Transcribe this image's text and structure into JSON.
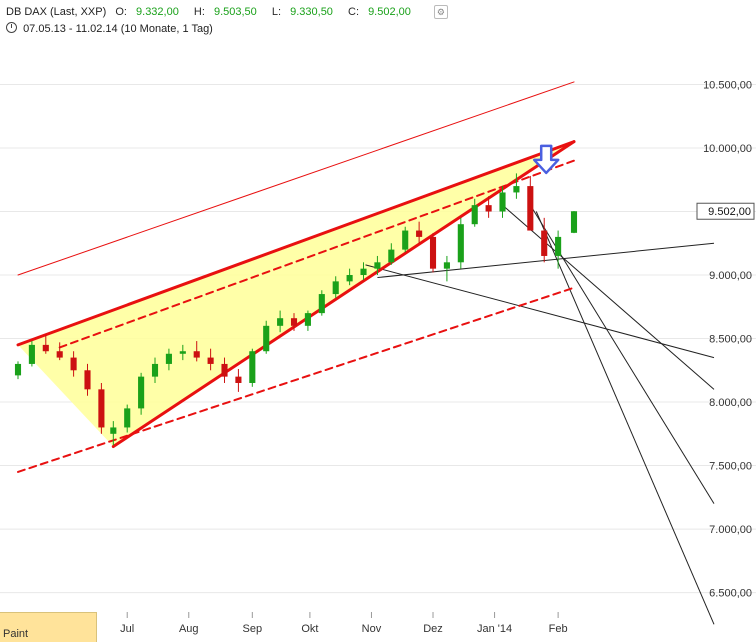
{
  "header": {
    "instrument": "DB DAX (Last, XXP)",
    "open_label": "O:",
    "open_value": "9.332,00",
    "high_label": "H:",
    "high_value": "9.503,50",
    "low_label": "L:",
    "low_value": "9.330,50",
    "close_label": "C:",
    "close_value": "9.502,00",
    "range": "07.05.13 - 11.02.14 (10 Monate, 1 Tag)",
    "settings_icon": "settings-icon",
    "clock_icon": "clock-icon"
  },
  "paint_button": {
    "label": "Paint"
  },
  "colors": {
    "up": "#1aa11a",
    "down": "#cc1111",
    "wedge_fill": "#ffff99",
    "trend_red": "#e81010",
    "arrow": "#4a5fe0",
    "grid": "#e8e8e8"
  },
  "chart_data": {
    "type": "candlestick",
    "title": "",
    "x_ticks": [
      "Jul",
      "Aug",
      "Sep",
      "Okt",
      "Nov",
      "Dez",
      "Jan '14",
      "Feb"
    ],
    "y_ticks": [
      "6.500,00",
      "7.000,00",
      "7.500,00",
      "8.000,00",
      "8.500,00",
      "9.000,00",
      "9.500,00",
      "10.000,00",
      "10.500,00"
    ],
    "y_tick_values": [
      6500,
      7000,
      7500,
      8000,
      8500,
      9000,
      9500,
      10000,
      10500
    ],
    "y_range": [
      6300,
      10850
    ],
    "last_price_label": "9.502,00",
    "last_price": 9502,
    "x_tick_dates": [
      "2013-07-01",
      "2013-08-01",
      "2013-09-02",
      "2013-10-01",
      "2013-11-01",
      "2013-12-02",
      "2014-01-02",
      "2014-02-03"
    ],
    "x_range": [
      "2013-05-07",
      "2014-02-11"
    ],
    "series": {
      "dates": [
        "2013-05-07",
        "2013-05-14",
        "2013-05-21",
        "2013-05-28",
        "2013-06-04",
        "2013-06-11",
        "2013-06-18",
        "2013-06-24",
        "2013-07-01",
        "2013-07-08",
        "2013-07-15",
        "2013-07-22",
        "2013-07-29",
        "2013-08-05",
        "2013-08-12",
        "2013-08-19",
        "2013-08-26",
        "2013-09-02",
        "2013-09-09",
        "2013-09-16",
        "2013-09-23",
        "2013-09-30",
        "2013-10-07",
        "2013-10-14",
        "2013-10-21",
        "2013-10-28",
        "2013-11-04",
        "2013-11-11",
        "2013-11-18",
        "2013-11-25",
        "2013-12-02",
        "2013-12-09",
        "2013-12-16",
        "2013-12-23",
        "2013-12-30",
        "2014-01-06",
        "2014-01-13",
        "2014-01-20",
        "2014-01-27",
        "2014-02-03",
        "2014-02-11"
      ],
      "open": [
        8210,
        8300,
        8450,
        8400,
        8350,
        8250,
        8100,
        7750,
        7800,
        7950,
        8200,
        8300,
        8380,
        8400,
        8350,
        8300,
        8200,
        8150,
        8400,
        8600,
        8660,
        8600,
        8700,
        8850,
        8950,
        9000,
        9050,
        9100,
        9200,
        9350,
        9300,
        9050,
        9100,
        9400,
        9550,
        9500,
        9650,
        9700,
        9350,
        9150,
        9332
      ],
      "high": [
        8320,
        8480,
        8530,
        8470,
        8400,
        8300,
        8150,
        7850,
        7980,
        8230,
        8350,
        8420,
        8450,
        8480,
        8420,
        8350,
        8260,
        8420,
        8640,
        8720,
        8700,
        8720,
        8880,
        8990,
        9050,
        9100,
        9150,
        9250,
        9380,
        9420,
        9330,
        9150,
        9450,
        9600,
        9620,
        9700,
        9800,
        9780,
        9450,
        9350,
        9504
      ],
      "low": [
        8180,
        8280,
        8380,
        8330,
        8200,
        8050,
        7750,
        7660,
        7760,
        7900,
        8150,
        8250,
        8330,
        8320,
        8250,
        8150,
        8080,
        8120,
        8380,
        8550,
        8560,
        8560,
        8680,
        8820,
        8920,
        8960,
        9000,
        9080,
        9180,
        9250,
        9020,
        8950,
        9050,
        9380,
        9450,
        9450,
        9600,
        9350,
        9100,
        9050,
        9330
      ],
      "close": [
        8300,
        8450,
        8400,
        8350,
        8250,
        8100,
        7800,
        7800,
        7950,
        8200,
        8300,
        8380,
        8400,
        8350,
        8300,
        8200,
        8150,
        8400,
        8600,
        8660,
        8600,
        8700,
        8850,
        8950,
        9000,
        9050,
        9100,
        9200,
        9350,
        9300,
        9050,
        9100,
        9400,
        9550,
        9500,
        9650,
        9700,
        9350,
        9150,
        9300,
        9502
      ]
    },
    "annotations": {
      "wedge": {
        "points": [
          [
            "2013-05-07",
            8450
          ],
          [
            "2014-02-11",
            10050
          ],
          [
            "2013-06-24",
            7650
          ]
        ]
      },
      "upper_trendline_red_solid": {
        "from": [
          "2013-05-07",
          8450
        ],
        "to": [
          "2014-02-11",
          10050
        ]
      },
      "lower_trendline_red_solid": {
        "from": [
          "2013-06-24",
          7650
        ],
        "to": [
          "2014-02-11",
          10050
        ]
      },
      "upper_trendline_red_dashed": {
        "from": [
          "2013-05-28",
          8430
        ],
        "to": [
          "2014-02-11",
          9900
        ]
      },
      "lower_trendline_red_dashed": {
        "from": [
          "2013-05-07",
          7450
        ],
        "to": [
          "2014-02-11",
          8900
        ]
      },
      "long_red_thin_line": {
        "from": [
          "2013-05-07",
          9000
        ],
        "to": [
          "2014-02-11",
          10520
        ]
      },
      "down_arrow": {
        "date": "2014-01-28",
        "value": 9780
      },
      "black_lines": [
        {
          "from": [
            "2013-10-29",
            9080
          ],
          "to": [
            "2014-02-11",
            8350
          ]
        },
        {
          "from": [
            "2013-11-04",
            8980
          ],
          "to": [
            "2014-02-11",
            9250
          ]
        },
        {
          "from": [
            "2014-01-06",
            9550
          ],
          "to": [
            "2014-02-11",
            8100
          ]
        },
        {
          "from": [
            "2014-01-20",
            9550
          ],
          "to": [
            "2014-02-11",
            7200
          ]
        },
        {
          "from": [
            "2014-01-23",
            9500
          ],
          "to": [
            "2014-02-11",
            6250
          ]
        }
      ]
    }
  }
}
